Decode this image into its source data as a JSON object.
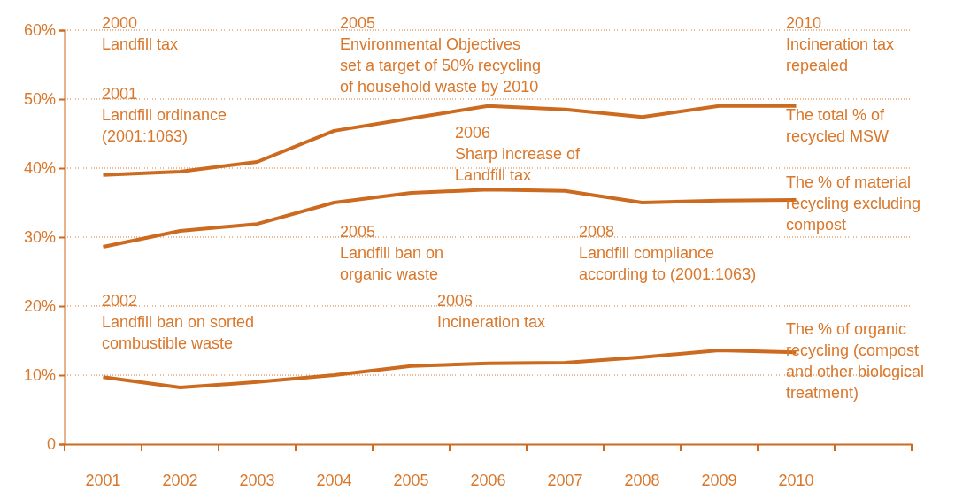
{
  "chart_data": {
    "type": "line",
    "categories": [
      "2001",
      "2002",
      "2003",
      "2004",
      "2005",
      "2006",
      "2007",
      "2008",
      "2009",
      "2010",
      null
    ],
    "series": [
      {
        "name": "The total % of recycled MSW",
        "color": "#cc6a1f",
        "values": [
          39,
          39.5,
          40.9,
          45.4,
          47.2,
          49,
          48.5,
          47.4,
          49,
          49,
          null
        ]
      },
      {
        "name": "The % of material recycling excluding compost",
        "color": "#cc6a1f",
        "values": [
          28.6,
          30.9,
          31.9,
          35,
          36.4,
          36.9,
          36.7,
          35,
          35.3,
          35.4,
          null
        ]
      },
      {
        "name": "The % of organic recycling (compost and other biological treatment)",
        "color": "#cc6a1f",
        "values": [
          9.7,
          8.2,
          9,
          10,
          11.3,
          11.7,
          11.8,
          12.6,
          13.6,
          13.3,
          null
        ]
      }
    ],
    "ylim": [
      0,
      60
    ],
    "yticks": [
      0,
      {
        "value": 10,
        "label": "10%"
      },
      {
        "value": 20,
        "label": "20%"
      },
      {
        "value": 30,
        "label": "30%"
      },
      {
        "value": 40,
        "label": "40%"
      },
      {
        "value": 50,
        "label": "50%"
      },
      {
        "value": 60,
        "label": "60%"
      }
    ],
    "grid": "y",
    "marker": "none",
    "line_style": "solid",
    "annotations": [
      "2000\nLandfill tax",
      "2005\nEnvironmental Objectives\nset a target of 50% recycling\nof household waste by 2010",
      "2010\nIncineration tax\nrepealed",
      "2001\nLandfill ordinance\n(2001:1063)",
      "2006\nSharp increase of\nLandfill tax",
      "2005\nLandfill ban on\norganic waste",
      "2008\nLandfill compliance\naccording to (2001:1063)",
      "2002\nLandfill ban on sorted\ncombustible waste",
      "2006\nIncineration tax"
    ]
  }
}
